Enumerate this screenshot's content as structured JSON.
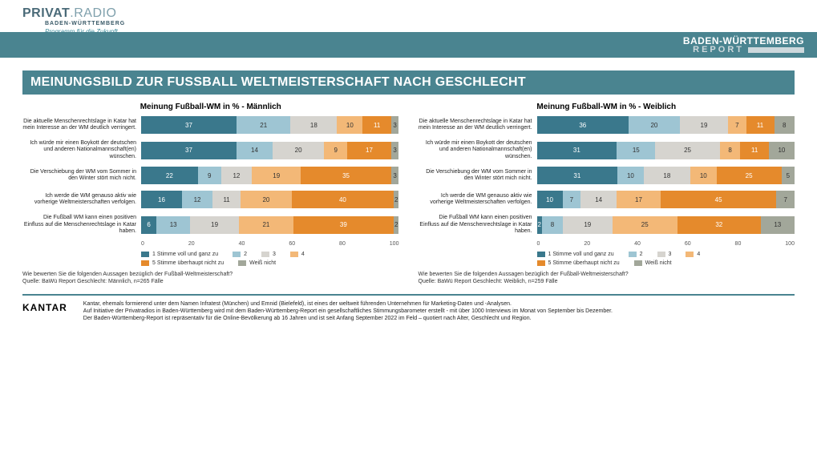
{
  "logo": {
    "main1": "PRIVAT",
    "main2": ".RADIO",
    "sub1": "BADEN-WÜRTTEMBERG",
    "sub2": "Programm für die Zukunft"
  },
  "headerRight": {
    "line1": "BADEN-WÜRTTEMBERG",
    "line2": "REPORT"
  },
  "title": "MEINUNGSBILD ZUR FUSSBALL WELTMEISTERSCHAFT NACH GESCHLECHT",
  "colors": {
    "c1": "#3a788c",
    "c2": "#9ec5d3",
    "c3": "#d6d4cf",
    "c4": "#f3b877",
    "c5": "#e58a2c",
    "c6": "#a2a79a"
  },
  "legend": [
    {
      "swatch": "c1",
      "label": "1 Stimme voll und ganz zu"
    },
    {
      "swatch": "c2",
      "label": "2"
    },
    {
      "swatch": "c3",
      "label": "3"
    },
    {
      "swatch": "c4",
      "label": "4"
    },
    {
      "swatch": "c5",
      "label": "5 Stimme überhaupt nicht zu"
    },
    {
      "swatch": "c6",
      "label": "Weiß nicht"
    }
  ],
  "rowLabels": [
    "Die aktuelle Menschenrechtslage in Katar hat mein Interesse an der WM deutlich verringert.",
    "Ich würde mir einen Boykott der deutschen und anderen Nationalmannschaft(en) wünschen.",
    "Die Verschiebung der WM vom Sommer in den Winter stört mich nicht.",
    "Ich werde die WM genauso aktiv wie vorherige Weltmeisterschaften verfolgen.",
    "Die Fußball WM kann einen positiven Einfluss auf die Menschenrechtslage in Katar haben."
  ],
  "charts": [
    {
      "name": "male",
      "title": "Meinung Fußball-WM in % - Männlich",
      "question": "Wie bewerten Sie die folgenden Aussagen bezüglich der Fußball-Weltmeisterschaft?",
      "source": "Quelle: BaWü Report Geschlecht: Männlich, n=265 Fälle",
      "rows": [
        [
          37,
          21,
          18,
          10,
          11,
          3
        ],
        [
          37,
          14,
          20,
          9,
          17,
          3
        ],
        [
          22,
          9,
          12,
          19,
          35,
          3
        ],
        [
          16,
          12,
          11,
          20,
          40,
          2
        ],
        [
          6,
          13,
          19,
          21,
          39,
          2
        ]
      ]
    },
    {
      "name": "female",
      "title": "Meinung Fußball-WM in % - Weiblich",
      "question": "Wie bewerten Sie die folgenden Aussagen bezüglich der Fußball-Weltmeisterschaft?",
      "source": "Quelle: BaWü Report Geschlecht: Weiblich, n=259 Fälle",
      "rows": [
        [
          36,
          20,
          19,
          7,
          11,
          8
        ],
        [
          31,
          15,
          25,
          8,
          11,
          10
        ],
        [
          31,
          10,
          18,
          10,
          25,
          5
        ],
        [
          10,
          7,
          14,
          17,
          45,
          7
        ],
        [
          2,
          8,
          19,
          25,
          32,
          13
        ]
      ]
    }
  ],
  "axis": {
    "min": 0,
    "max": 100,
    "step": 20
  },
  "footer": {
    "brand": "KANTAR",
    "lines": [
      "Kantar, ehemals formierend unter dem Namen Infratest (München) und Emnid (Bielefeld), ist eines der weltweit führenden Unternehmen für Marketing-Daten und -Analysen.",
      "Auf Initiative der Privatradios in Baden-Württemberg wird mit dem Baden-Württemberg-Report ein gesellschaftliches Stimmungsbarometer erstellt - mit über 1000 Interviews im Monat von September bis Dezember.",
      "Der Baden-Württemberg-Report ist repräsentativ für die Online-Bevölkerung ab 16 Jahren und ist seit Anfang September 2022 im Feld – quotiert nach Alter, Geschlecht und Region."
    ]
  }
}
